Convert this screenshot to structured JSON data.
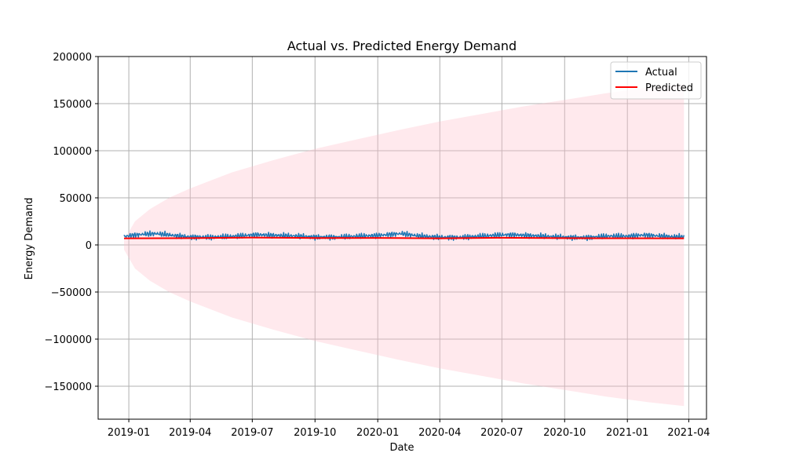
{
  "chart_data": {
    "type": "line",
    "title": "Actual vs. Predicted Energy Demand",
    "xlabel": "Date",
    "ylabel": "Energy Demand",
    "xlim": [
      "2018-11-17",
      "2021-04-27"
    ],
    "ylim": [
      -185000,
      200000
    ],
    "x_ticks": [
      "2019-01",
      "2019-04",
      "2019-07",
      "2019-10",
      "2020-01",
      "2020-04",
      "2020-07",
      "2020-10",
      "2021-01",
      "2021-04"
    ],
    "y_ticks": [
      200000,
      150000,
      100000,
      50000,
      0,
      -50000,
      -100000,
      -150000
    ],
    "grid": true,
    "legend_position": "top-right",
    "colors": {
      "actual": "#1f77b4",
      "predicted": "#ff0000",
      "band": "#ffc0cb"
    },
    "legend": [
      "Actual",
      "Predicted"
    ],
    "series": [
      {
        "name": "Actual",
        "x": [
          "2018-12-25",
          "2019-01-10",
          "2019-01-25",
          "2019-02-10",
          "2019-02-25",
          "2019-03-10",
          "2019-04-01",
          "2019-05-01",
          "2019-06-01",
          "2019-06-20",
          "2019-07-10",
          "2019-08-01",
          "2019-09-01",
          "2019-10-01",
          "2019-11-01",
          "2019-12-01",
          "2020-01-01",
          "2020-01-20",
          "2020-02-05",
          "2020-03-01",
          "2020-04-01",
          "2020-05-01",
          "2020-06-01",
          "2020-06-20",
          "2020-07-10",
          "2020-08-01",
          "2020-09-01",
          "2020-10-01",
          "2020-11-01",
          "2020-11-20",
          "2020-12-10",
          "2021-01-01",
          "2021-01-25",
          "2021-02-15",
          "2021-03-10",
          "2021-03-25"
        ],
        "values": [
          9000,
          10500,
          11500,
          12000,
          11000,
          9800,
          8500,
          8200,
          9000,
          10000,
          10800,
          10200,
          9500,
          8400,
          8300,
          9200,
          10000,
          11200,
          12000,
          9500,
          8200,
          8000,
          9300,
          10200,
          10800,
          10300,
          9200,
          8200,
          7800,
          8800,
          9500,
          9200,
          10500,
          9600,
          8700,
          8500
        ]
      },
      {
        "name": "Predicted",
        "x": [
          "2018-12-25",
          "2019-04-01",
          "2019-07-01",
          "2019-10-01",
          "2020-01-01",
          "2020-04-01",
          "2020-07-01",
          "2020-10-01",
          "2021-01-01",
          "2021-03-25"
        ],
        "values": [
          7000,
          7200,
          7800,
          7300,
          7400,
          7000,
          7600,
          7200,
          7100,
          7000
        ]
      }
    ],
    "interval": {
      "x": [
        "2018-12-25",
        "2019-01-10",
        "2019-02-01",
        "2019-03-01",
        "2019-04-01",
        "2019-06-01",
        "2019-08-01",
        "2019-10-01",
        "2019-12-01",
        "2020-02-01",
        "2020-04-01",
        "2020-06-01",
        "2020-08-01",
        "2020-10-01",
        "2020-12-01",
        "2021-02-01",
        "2021-03-25"
      ],
      "upper": [
        5000,
        25000,
        38000,
        50000,
        60000,
        77000,
        90000,
        102000,
        112000,
        122000,
        131000,
        139000,
        147000,
        154000,
        161000,
        167000,
        171000
      ],
      "lower": [
        -5000,
        -25000,
        -38000,
        -50000,
        -60000,
        -77000,
        -90000,
        -102000,
        -112000,
        -122000,
        -131000,
        -139000,
        -147000,
        -154000,
        -161000,
        -167000,
        -171000
      ]
    }
  }
}
